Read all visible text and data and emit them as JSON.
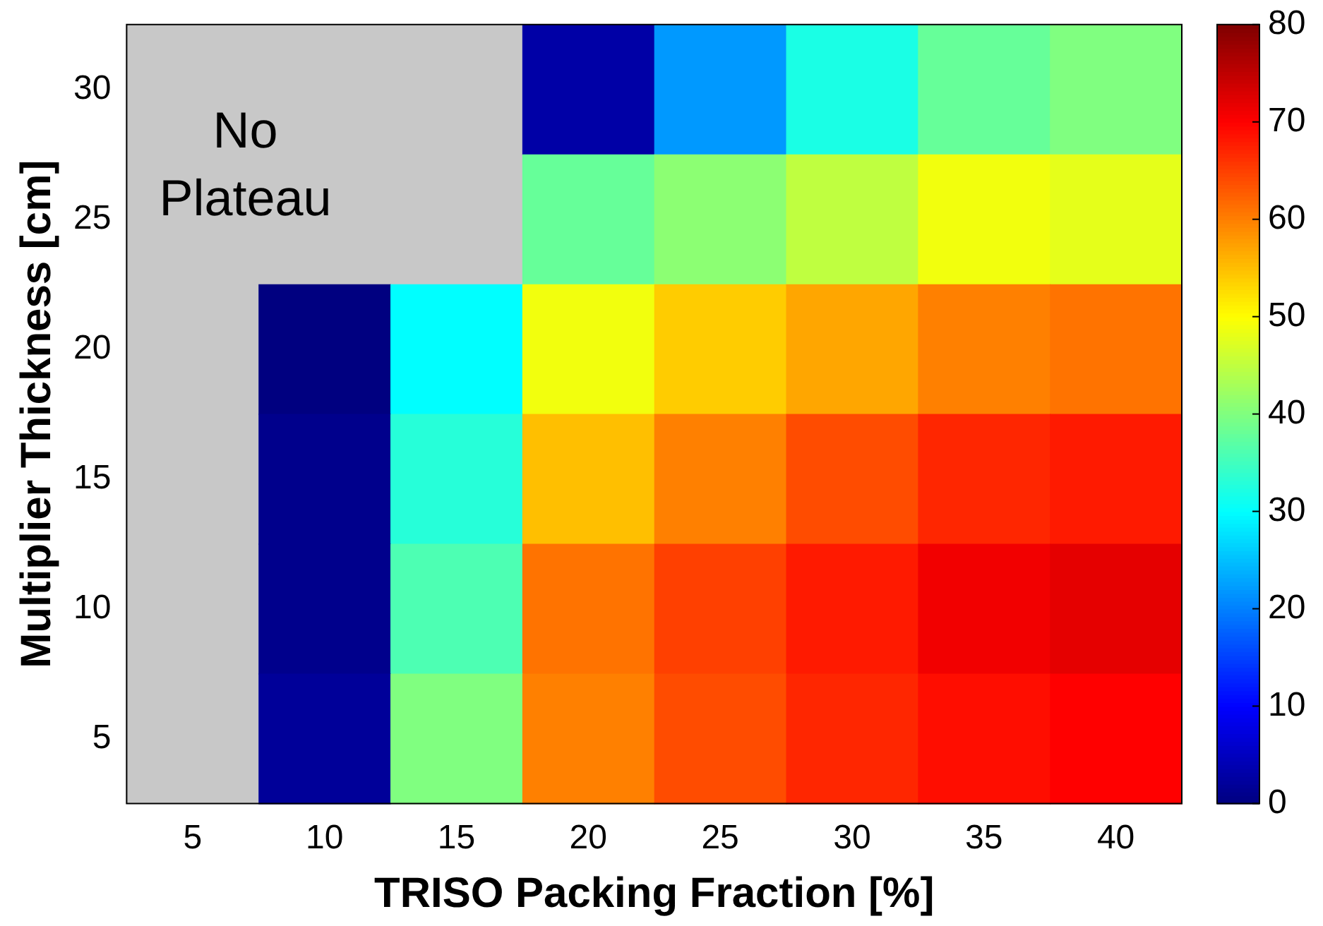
{
  "chart_data": {
    "type": "heatmap",
    "xlabel": "TRISO Packing Fraction [%]",
    "ylabel": "Multiplier Thickness [cm]",
    "categories": [
      "5",
      "10",
      "15",
      "20",
      "25",
      "30",
      "35",
      "40"
    ],
    "y_categories": [
      "30",
      "25",
      "20",
      "15",
      "10",
      "5"
    ],
    "cells": [
      [
        null,
        null,
        null,
        3,
        22,
        32,
        38,
        40
      ],
      [
        null,
        null,
        null,
        38,
        41,
        45,
        49,
        48
      ],
      [
        null,
        0,
        30,
        49,
        54,
        57,
        60,
        61
      ],
      [
        null,
        1,
        33,
        55,
        60,
        64,
        67,
        68
      ],
      [
        null,
        1,
        36,
        61,
        65,
        68,
        71,
        72
      ],
      [
        null,
        2,
        40,
        60,
        64,
        67,
        69,
        70
      ]
    ],
    "clim": [
      0,
      80
    ],
    "cticks": [
      0,
      10,
      20,
      30,
      40,
      50,
      60,
      70,
      80
    ],
    "annotations": [
      "No Plateau"
    ]
  }
}
